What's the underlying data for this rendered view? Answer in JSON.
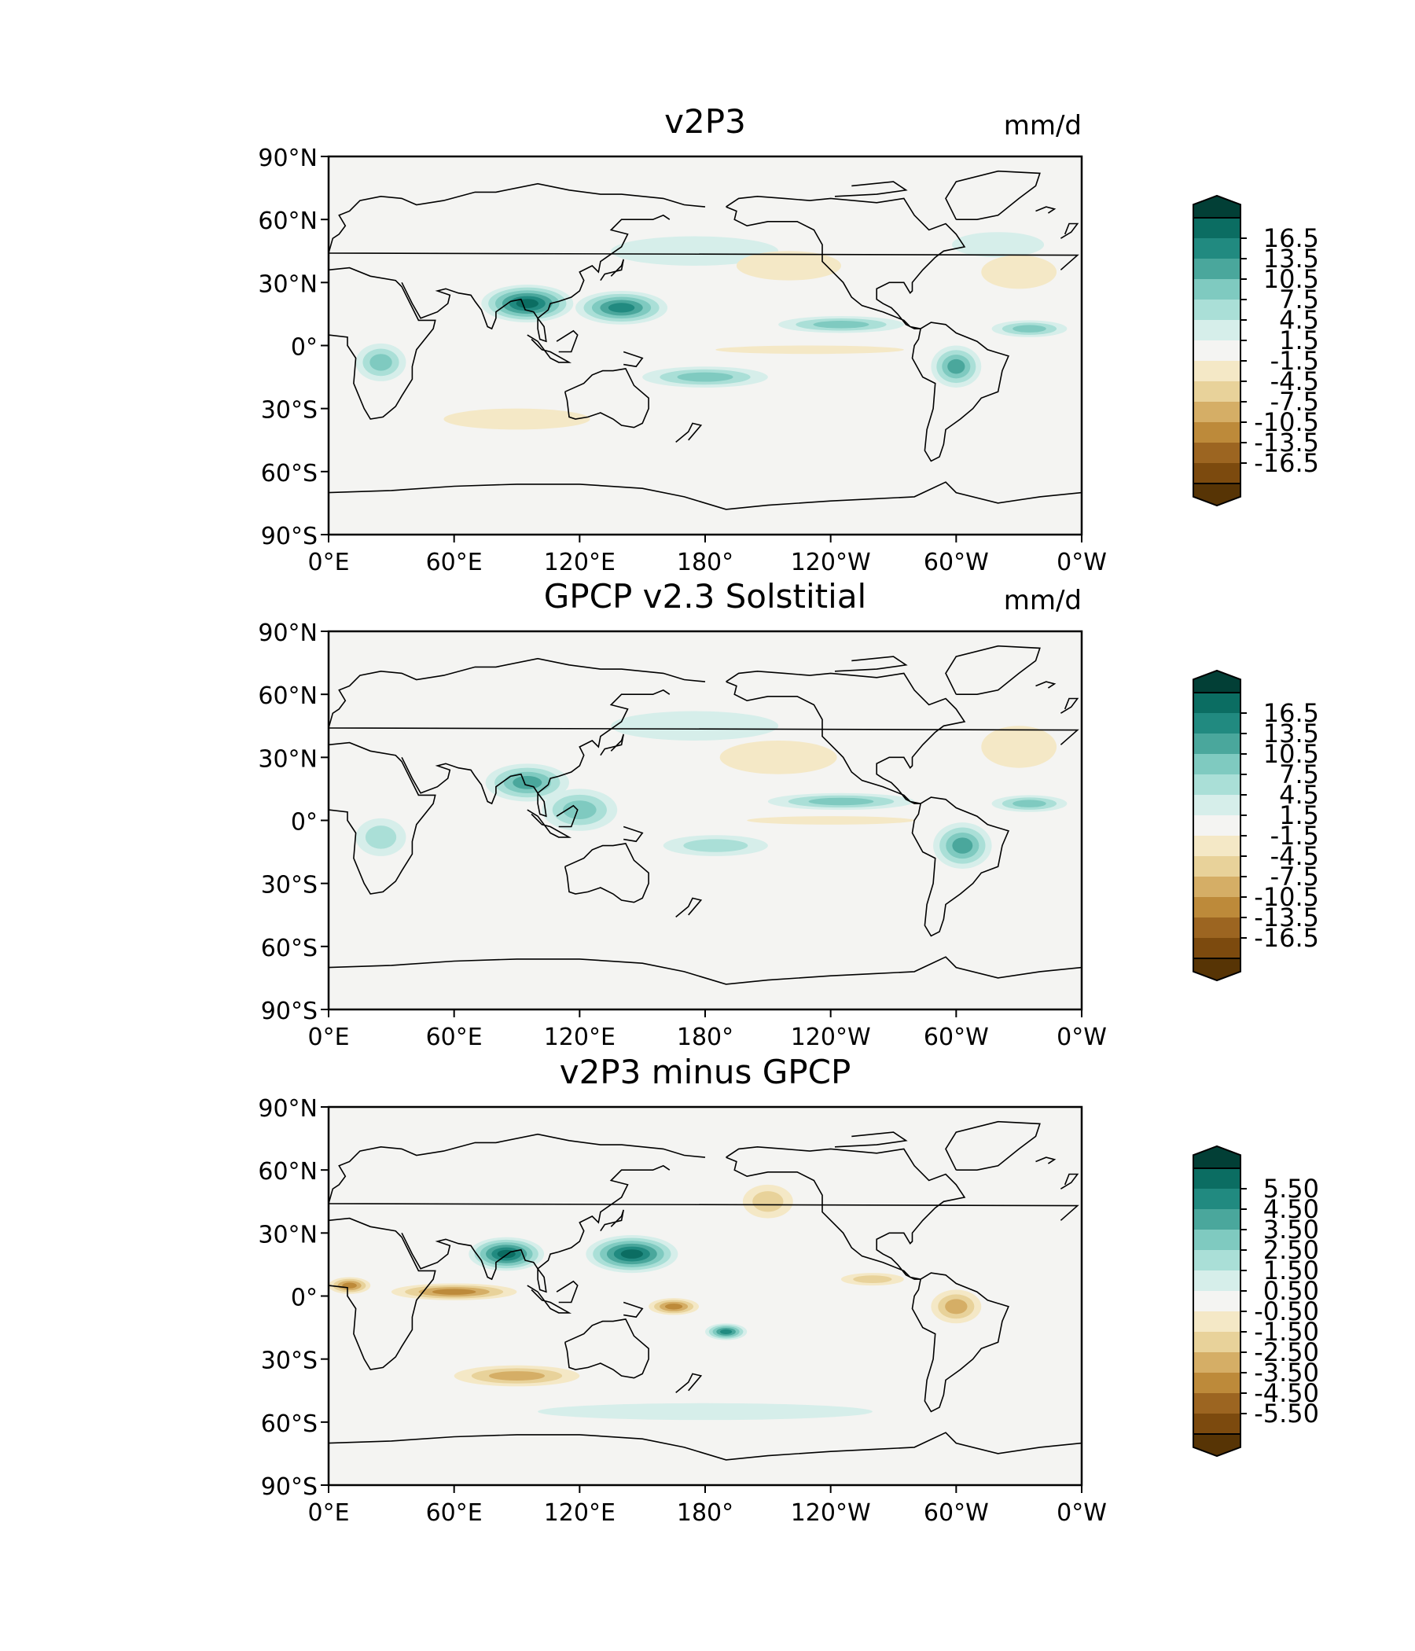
{
  "panels": [
    {
      "title": "v2P3",
      "units": "mm/d",
      "cbar_ticks": [
        "16.5",
        "13.5",
        "10.5",
        "7.5",
        "4.5",
        "1.5",
        "-1.5",
        "-4.5",
        "-7.5",
        "-10.5",
        "-13.5",
        "-16.5"
      ],
      "features": [
        {
          "kind": "itcz",
          "label": "South Asian monsoon maximum",
          "lon": 95,
          "lat": 20,
          "rx": 22,
          "ry": 9,
          "level": 6
        },
        {
          "kind": "itcz",
          "label": "Western Pacific maximum",
          "lon": 140,
          "lat": 18,
          "rx": 22,
          "ry": 8,
          "level": 5
        },
        {
          "kind": "itcz",
          "label": "Pacific ITCZ",
          "lon": 245,
          "lat": 10,
          "rx": 30,
          "ry": 4,
          "level": 3
        },
        {
          "kind": "itcz",
          "label": "Atlantic ITCZ",
          "lon": 335,
          "lat": 8,
          "rx": 18,
          "ry": 4,
          "level": 3
        },
        {
          "kind": "itcz",
          "label": "South Pacific convergence",
          "lon": 180,
          "lat": -15,
          "rx": 30,
          "ry": 5,
          "level": 3
        },
        {
          "kind": "itcz",
          "label": "Amazon",
          "lon": 300,
          "lat": -10,
          "rx": 12,
          "ry": 10,
          "level": 4
        },
        {
          "kind": "itcz",
          "label": "Central Africa",
          "lon": 25,
          "lat": -8,
          "rx": 12,
          "ry": 9,
          "level": 3
        },
        {
          "kind": "itcz",
          "label": "North Atlantic storm track",
          "lon": 320,
          "lat": 48,
          "rx": 22,
          "ry": 6,
          "level": 1
        },
        {
          "kind": "itcz",
          "label": "North Pacific storm track",
          "lon": 175,
          "lat": 45,
          "rx": 40,
          "ry": 7,
          "level": 1
        },
        {
          "kind": "dry",
          "label": "Subtropical North Pacific",
          "lon": 220,
          "lat": 38,
          "rx": 25,
          "ry": 7,
          "level": -1
        },
        {
          "kind": "dry",
          "label": "Subtropical North Atlantic",
          "lon": 330,
          "lat": 35,
          "rx": 18,
          "ry": 8,
          "level": -1
        },
        {
          "kind": "dry",
          "label": "Southern Indian Ocean",
          "lon": 90,
          "lat": -35,
          "rx": 35,
          "ry": 5,
          "level": -1
        },
        {
          "kind": "dry",
          "label": "Equatorial cold tongue",
          "lon": 230,
          "lat": -2,
          "rx": 45,
          "ry": 2,
          "level": -1
        }
      ]
    },
    {
      "title": "GPCP v2.3 Solstitial",
      "units": "mm/d",
      "cbar_ticks": [
        "16.5",
        "13.5",
        "10.5",
        "7.5",
        "4.5",
        "1.5",
        "-1.5",
        "-4.5",
        "-7.5",
        "-10.5",
        "-13.5",
        "-16.5"
      ],
      "features": [
        {
          "kind": "itcz",
          "label": "South Asian monsoon maximum",
          "lon": 95,
          "lat": 18,
          "rx": 20,
          "ry": 9,
          "level": 4
        },
        {
          "kind": "itcz",
          "label": "Maritime continent",
          "lon": 120,
          "lat": 5,
          "rx": 18,
          "ry": 10,
          "level": 3
        },
        {
          "kind": "itcz",
          "label": "Pacific ITCZ",
          "lon": 245,
          "lat": 9,
          "rx": 35,
          "ry": 4,
          "level": 3
        },
        {
          "kind": "itcz",
          "label": "Atlantic ITCZ",
          "lon": 335,
          "lat": 8,
          "rx": 18,
          "ry": 4,
          "level": 3
        },
        {
          "kind": "itcz",
          "label": "South Pacific convergence",
          "lon": 185,
          "lat": -12,
          "rx": 25,
          "ry": 5,
          "level": 2
        },
        {
          "kind": "itcz",
          "label": "Amazon",
          "lon": 303,
          "lat": -12,
          "rx": 14,
          "ry": 11,
          "level": 4
        },
        {
          "kind": "itcz",
          "label": "Central Africa",
          "lon": 25,
          "lat": -8,
          "rx": 12,
          "ry": 9,
          "level": 2
        },
        {
          "kind": "itcz",
          "label": "North Pacific storm track",
          "lon": 175,
          "lat": 45,
          "rx": 40,
          "ry": 7,
          "level": 1
        },
        {
          "kind": "dry",
          "label": "Subtropical North Pacific",
          "lon": 215,
          "lat": 30,
          "rx": 28,
          "ry": 8,
          "level": -1
        },
        {
          "kind": "dry",
          "label": "Subtropical North Atlantic",
          "lon": 330,
          "lat": 35,
          "rx": 18,
          "ry": 10,
          "level": -1
        },
        {
          "kind": "dry",
          "label": "Equatorial cold tongue",
          "lon": 240,
          "lat": 0,
          "rx": 40,
          "ry": 2,
          "level": -1
        }
      ]
    },
    {
      "title": "v2P3 minus GPCP",
      "units": "",
      "cbar_ticks": [
        "5.50",
        "4.50",
        "3.50",
        "2.50",
        "1.50",
        "0.50",
        "-0.50",
        "-1.50",
        "-2.50",
        "-3.50",
        "-4.50",
        "-5.50"
      ],
      "features": [
        {
          "kind": "itcz",
          "label": "Bay of Bengal / South Asia excess",
          "lon": 85,
          "lat": 20,
          "rx": 18,
          "ry": 8,
          "level": 6
        },
        {
          "kind": "itcz",
          "label": "Western Pacific excess",
          "lon": 145,
          "lat": 20,
          "rx": 22,
          "ry": 9,
          "level": 6
        },
        {
          "kind": "itcz",
          "label": "Central Pacific excess",
          "lon": 190,
          "lat": -17,
          "rx": 10,
          "ry": 4,
          "level": 5
        },
        {
          "kind": "itcz",
          "label": "Southern Ocean excess",
          "lon": 180,
          "lat": -55,
          "rx": 80,
          "ry": 4,
          "level": 1
        },
        {
          "kind": "dry",
          "label": "Equatorial Indian Ocean deficit",
          "lon": 60,
          "lat": 2,
          "rx": 30,
          "ry": 4,
          "level": -4
        },
        {
          "kind": "dry",
          "label": "West Africa deficit",
          "lon": 10,
          "lat": 5,
          "rx": 10,
          "ry": 4,
          "level": -4
        },
        {
          "kind": "dry",
          "label": "South Pacific deficit",
          "lon": 165,
          "lat": -5,
          "rx": 12,
          "ry": 4,
          "level": -4
        },
        {
          "kind": "dry",
          "label": "Amazon deficit",
          "lon": 300,
          "lat": -5,
          "rx": 12,
          "ry": 8,
          "level": -3
        },
        {
          "kind": "dry",
          "label": "Southern Indian Ocean deficit",
          "lon": 90,
          "lat": -38,
          "rx": 30,
          "ry": 5,
          "level": -3
        },
        {
          "kind": "dry",
          "label": "Eastern Pacific deficit",
          "lon": 260,
          "lat": 8,
          "rx": 15,
          "ry": 3,
          "level": -2
        },
        {
          "kind": "dry",
          "label": "North Pacific deficit",
          "lon": 210,
          "lat": 45,
          "rx": 12,
          "ry": 8,
          "level": -2
        }
      ]
    }
  ],
  "lat_ticks": [
    "90°N",
    "60°N",
    "30°N",
    "0°",
    "30°S",
    "60°S",
    "90°S"
  ],
  "lon_ticks": [
    "0°E",
    "60°E",
    "120°E",
    "180°",
    "120°W",
    "60°W",
    "0°W"
  ],
  "palette": {
    "positive": [
      "#d6eeea",
      "#aadfd7",
      "#7fcac0",
      "#4aa79c",
      "#218a80",
      "#0b6d62",
      "#023f36"
    ],
    "negative": [
      "#f4e8c6",
      "#e8d29a",
      "#d5ae66",
      "#bd8a3a",
      "#9c6521",
      "#7c4a0e",
      "#573405"
    ],
    "neutral": "#f4f4f2"
  }
}
